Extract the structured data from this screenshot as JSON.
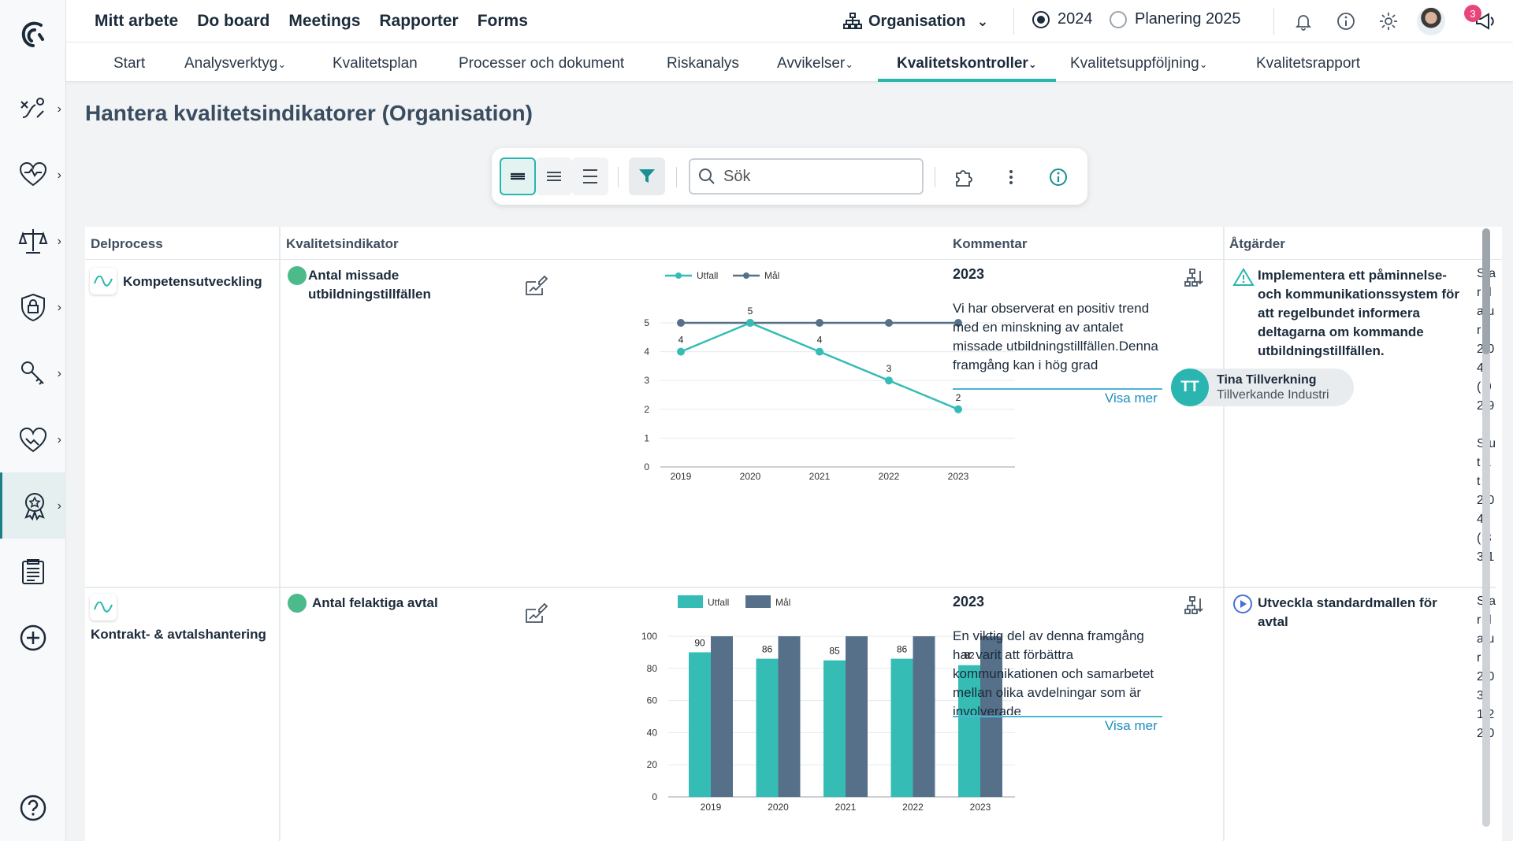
{
  "topnav": {
    "items": [
      "Mitt arbete",
      "Do board",
      "Meetings",
      "Rapporter",
      "Forms"
    ]
  },
  "header": {
    "organisation": "Organisation",
    "year_current": "2024",
    "year_planning": "Planering 2025",
    "notification_count": "3"
  },
  "subnav": {
    "tabs": [
      "Start",
      "Analysverktyg",
      "Kvalitetsplan",
      "Processer och dokument",
      "Riskanalys",
      "Avvikelser",
      "Kvalitetskontroller",
      "Kvalitetsuppföljning",
      "Kvalitetsrapport"
    ],
    "active": "Kvalitetskontroller"
  },
  "page": {
    "title": "Hantera kvalitetsindikatorer (Organisation)"
  },
  "toolbar": {
    "search_placeholder": "Sök"
  },
  "table": {
    "columns": [
      "Delprocess",
      "Kvalitetsindikator",
      "Kommentar",
      "Åtgärder"
    ],
    "rows": [
      {
        "delprocess": "Kompetensutveckling",
        "indicator": "Antal missade utbildningstillfällen",
        "comment_year": "2023",
        "comment_text": "Vi har observerat en positiv trend med en minskning av antalet missade utbildningstillfällen.Denna framgång kan i hög grad",
        "visa_mer": "Visa mer",
        "action": "Implementera ett påminnelse- och kommunikationssystem för att regelbundet informera deltagarna om kommande utbildningstillfällen.",
        "assignee_initials": "TT",
        "assignee_name": "Tina Tillverkning",
        "assignee_org": "Tillverkande Industri",
        "clipped_col": [
          "S a",
          "r d",
          "a u",
          "r",
          "2 0",
          "4",
          "( 0",
          "2 9",
          "",
          "S u",
          "t a",
          "t r",
          "2 0",
          "4",
          "( 3",
          "3 1"
        ]
      },
      {
        "delprocess": "Kontrakt- & avtalshantering",
        "indicator": "Antal felaktiga avtal",
        "comment_year": "2023",
        "comment_text": "En viktig del av denna framgång har varit att förbättra kommunikationen och samarbetet mellan olika avdelningar som är involverade",
        "visa_mer": "Visa mer",
        "action": "Utveckla standardmallen för avtal",
        "clipped_col": [
          "S a",
          "r d",
          "a u",
          "r",
          "2 0",
          "3",
          "1 2",
          "2 0"
        ]
      }
    ]
  },
  "chart_data": [
    {
      "type": "line",
      "x": [
        "2019",
        "2020",
        "2021",
        "2022",
        "2023"
      ],
      "series": [
        {
          "name": "Utfall",
          "values": [
            4,
            5,
            4,
            3,
            2
          ]
        },
        {
          "name": "Mål",
          "values": [
            5,
            5,
            5,
            5,
            5
          ]
        }
      ],
      "ylim": [
        0,
        5
      ],
      "yticks": [
        0,
        1,
        2,
        3,
        4,
        5
      ],
      "legend": "top-left",
      "colors": {
        "Utfall": "#35bdb5",
        "Mål": "#56708a"
      }
    },
    {
      "type": "bar",
      "categories": [
        "2019",
        "2020",
        "2021",
        "2022",
        "2023"
      ],
      "series": [
        {
          "name": "Utfall",
          "values": [
            90,
            86,
            85,
            86,
            82
          ]
        },
        {
          "name": "Mål",
          "values": [
            100,
            100,
            100,
            100,
            100
          ]
        }
      ],
      "ylim": [
        0,
        100
      ],
      "yticks": [
        0,
        20,
        40,
        60,
        80,
        100
      ],
      "legend": "top-left",
      "colors": {
        "Utfall": "#35bdb5",
        "Mål": "#56708a"
      }
    }
  ]
}
